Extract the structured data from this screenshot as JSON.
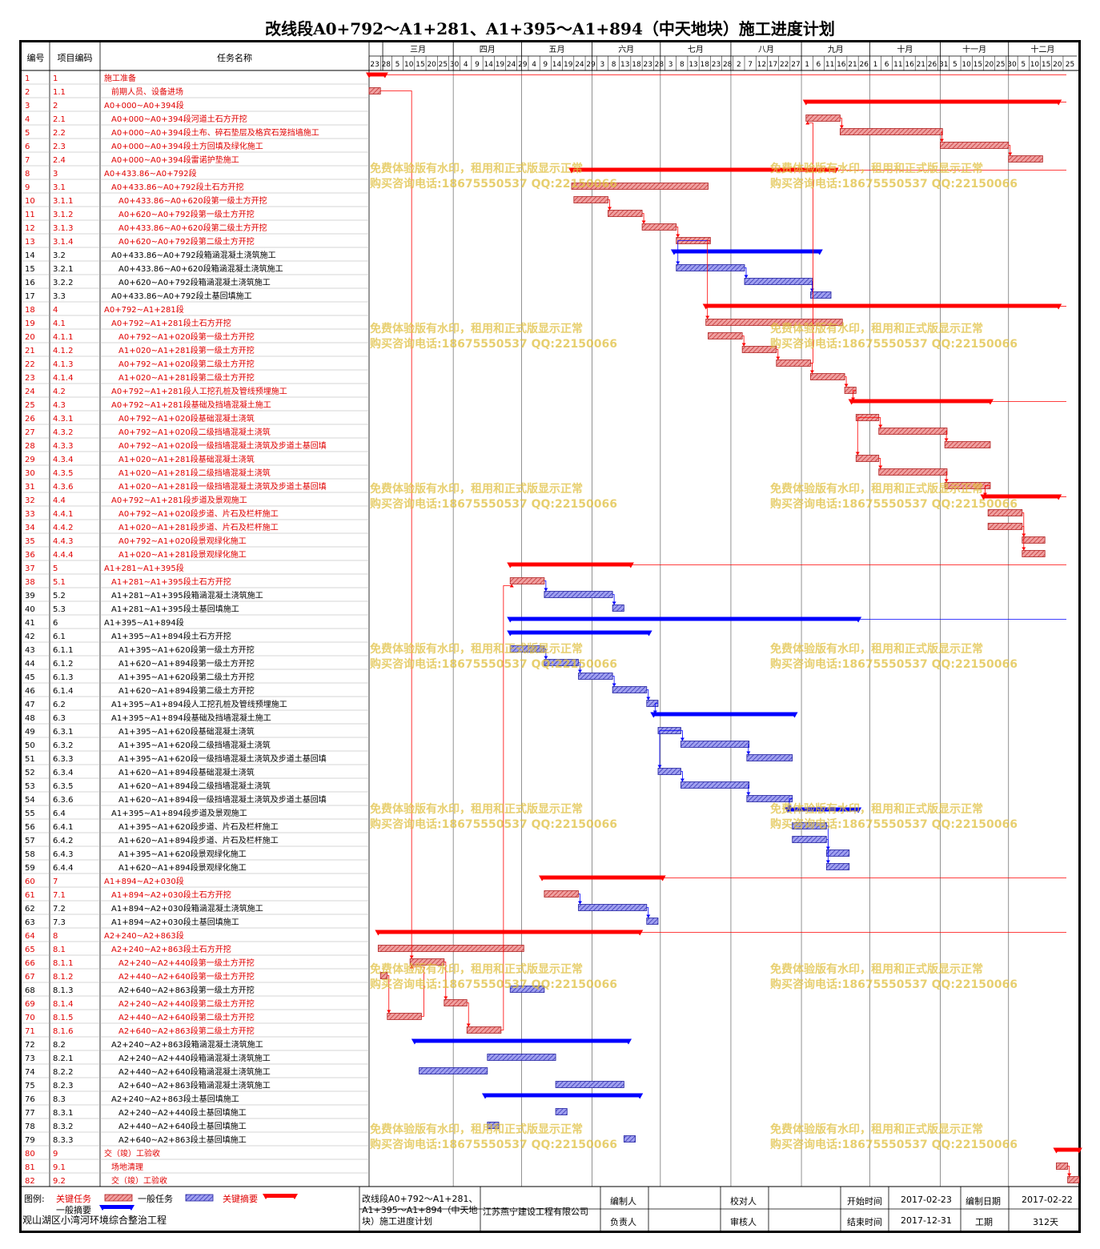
{
  "title": "改线段A0+792～A1+281、A1+395～A1+894（中天地块）施工进度计划",
  "chart_data": {
    "type": "gantt",
    "start_date": "2017-02-23",
    "end_date": "2017-12-31",
    "columns": {
      "id": "编号",
      "code": "项目编码",
      "name": "任务名称"
    },
    "months": [
      "三月",
      "四月",
      "五月",
      "六月",
      "七月",
      "八月",
      "九月",
      "十月",
      "十一月",
      "十二月"
    ],
    "days": [
      "23",
      "28",
      "5",
      "10",
      "15",
      "20",
      "25",
      "30",
      "4",
      "9",
      "14",
      "19",
      "24",
      "29",
      "4",
      "9",
      "14",
      "19",
      "24",
      "29",
      "3",
      "8",
      "13",
      "18",
      "23",
      "28",
      "3",
      "8",
      "13",
      "18",
      "23",
      "28",
      "2",
      "7",
      "12",
      "17",
      "22",
      "27",
      "1",
      "6",
      "11",
      "16",
      "21",
      "26",
      "1",
      "6",
      "11",
      "16",
      "21",
      "26",
      "31",
      "5",
      "10",
      "15",
      "20",
      "25",
      "30",
      "5",
      "10",
      "15",
      "20",
      "25"
    ],
    "colors": {
      "critical": "#ff0000",
      "normal": "#0000ff",
      "critical_bar": "#e06060",
      "normal_bar": "#6060d0"
    },
    "tasks": [
      {
        "id": "1",
        "code": "1",
        "name": "施工准备",
        "c": 1,
        "sum": 1,
        "s": "02-23",
        "e": "03-01",
        "dep": []
      },
      {
        "id": "2",
        "code": "1.1",
        "name": "前期人员、设备进场",
        "c": 1,
        "sum": 0,
        "s": "02-23",
        "e": "02-27",
        "dep": [
          66
        ]
      },
      {
        "id": "3",
        "code": "2",
        "name": "A0+000~A0+394段",
        "c": 1,
        "sum": 1,
        "s": "09-03",
        "e": "12-22",
        "dep": []
      },
      {
        "id": "4",
        "code": "2.1",
        "name": "A0+000~A0+394段河道土石方开挖",
        "c": 1,
        "sum": 0,
        "s": "09-03",
        "e": "09-17",
        "dep": [
          5
        ]
      },
      {
        "id": "5",
        "code": "2.2",
        "name": "A0+000~A0+394段土布、碎石垫层及格宾石笼挡墙施工",
        "c": 1,
        "sum": 0,
        "s": "09-18",
        "e": "11-01",
        "dep": [
          6
        ]
      },
      {
        "id": "6",
        "code": "2.3",
        "name": "A0+000~A0+394段土方回填及绿化施工",
        "c": 1,
        "sum": 0,
        "s": "11-01",
        "e": "11-30",
        "dep": [
          7
        ]
      },
      {
        "id": "7",
        "code": "2.4",
        "name": "A0+000~A0+394段雷诺护垫施工",
        "c": 1,
        "sum": 0,
        "s": "12-01",
        "e": "12-15",
        "dep": []
      },
      {
        "id": "8",
        "code": "3",
        "name": "A0+433.86~A0+792段",
        "c": 1,
        "sum": 1,
        "s": "05-23",
        "e": "09-15",
        "dep": []
      },
      {
        "id": "9",
        "code": "3.1",
        "name": "A0+433.86~A0+792段土石方开挖",
        "c": 1,
        "sum": 0,
        "s": "05-23",
        "e": "07-21",
        "dep": []
      },
      {
        "id": "10",
        "code": "3.1.1",
        "name": "A0+433.86~A0+620段第一级土方开挖",
        "c": 1,
        "sum": 0,
        "s": "05-24",
        "e": "06-07",
        "dep": [
          11
        ]
      },
      {
        "id": "11",
        "code": "3.1.2",
        "name": "A0+620~A0+792段第一级土方开挖",
        "c": 1,
        "sum": 0,
        "s": "06-08",
        "e": "06-22",
        "dep": [
          12
        ]
      },
      {
        "id": "12",
        "code": "3.1.3",
        "name": "A0+433.86~A0+620段第二级土方开挖",
        "c": 1,
        "sum": 0,
        "s": "06-23",
        "e": "07-07",
        "dep": [
          13
        ]
      },
      {
        "id": "13",
        "code": "3.1.4",
        "name": "A0+620~A0+792段第二级土方开挖",
        "c": 1,
        "sum": 0,
        "s": "07-08",
        "e": "07-22",
        "dep": [
          15,
          19
        ]
      },
      {
        "id": "14",
        "code": "3.2",
        "name": "A0+433.86~A0+792段箱涵混凝土浇筑施工",
        "c": 0,
        "sum": 1,
        "s": "07-07",
        "e": "09-08",
        "dep": []
      },
      {
        "id": "15",
        "code": "3.2.1",
        "name": "A0+433.86~A0+620段箱涵混凝土浇筑施工",
        "c": 0,
        "sum": 0,
        "s": "07-08",
        "e": "08-06",
        "dep": [
          16
        ]
      },
      {
        "id": "16",
        "code": "3.2.2",
        "name": "A0+620~A0+792段箱涵混凝土浇筑施工",
        "c": 0,
        "sum": 0,
        "s": "08-07",
        "e": "09-05",
        "dep": [
          17
        ]
      },
      {
        "id": "17",
        "code": "3.3",
        "name": "A0+433.86~A0+792段土基回填施工",
        "c": 0,
        "sum": 0,
        "s": "09-05",
        "e": "09-13",
        "dep": []
      },
      {
        "id": "18",
        "code": "4",
        "name": "A0+792~A1+281段",
        "c": 1,
        "sum": 1,
        "s": "07-21",
        "e": "12-22",
        "dep": []
      },
      {
        "id": "19",
        "code": "4.1",
        "name": "A0+792~A1+281段土石方开挖",
        "c": 1,
        "sum": 0,
        "s": "07-21",
        "e": "09-18",
        "dep": []
      },
      {
        "id": "20",
        "code": "4.1.1",
        "name": "A0+792~A1+020段第一级土方开挖",
        "c": 1,
        "sum": 0,
        "s": "07-22",
        "e": "08-05",
        "dep": [
          21
        ]
      },
      {
        "id": "21",
        "code": "4.1.2",
        "name": "A1+020~A1+281段第一级土方开挖",
        "c": 1,
        "sum": 0,
        "s": "08-06",
        "e": "08-20",
        "dep": [
          22
        ]
      },
      {
        "id": "22",
        "code": "4.1.3",
        "name": "A0+792~A1+020段第二级土方开挖",
        "c": 1,
        "sum": 0,
        "s": "08-21",
        "e": "09-04",
        "dep": [
          23,
          4
        ]
      },
      {
        "id": "23",
        "code": "4.1.4",
        "name": "A1+020~A1+281段第二级土方开挖",
        "c": 1,
        "sum": 0,
        "s": "09-05",
        "e": "09-19",
        "dep": [
          24
        ]
      },
      {
        "id": "24",
        "code": "4.2",
        "name": "A0+792~A1+281段人工挖孔桩及管线预埋施工",
        "c": 1,
        "sum": 0,
        "s": "09-20",
        "e": "09-24",
        "dep": [
          25
        ]
      },
      {
        "id": "25",
        "code": "4.3",
        "name": "A0+792~A1+281段基础及挡墙混凝土施工",
        "c": 1,
        "sum": 1,
        "s": "09-23",
        "e": "11-22",
        "dep": []
      },
      {
        "id": "26",
        "code": "4.3.1",
        "name": "A0+792~A1+020段基础混凝土浇筑",
        "c": 1,
        "sum": 0,
        "s": "09-25",
        "e": "10-04",
        "dep": [
          27,
          29
        ]
      },
      {
        "id": "27",
        "code": "4.3.2",
        "name": "A0+792~A1+020段二级挡墙混凝土浇筑",
        "c": 1,
        "sum": 0,
        "s": "10-05",
        "e": "11-03",
        "dep": [
          28
        ]
      },
      {
        "id": "28",
        "code": "4.3.3",
        "name": "A0+792~A1+020段一级挡墙混凝土浇筑及步道土基回填",
        "c": 1,
        "sum": 0,
        "s": "11-03",
        "e": "11-22",
        "dep": []
      },
      {
        "id": "29",
        "code": "4.3.4",
        "name": "A1+020~A1+281段基础混凝土浇筑",
        "c": 1,
        "sum": 0,
        "s": "09-25",
        "e": "10-04",
        "dep": [
          30
        ]
      },
      {
        "id": "30",
        "code": "4.3.5",
        "name": "A1+020~A1+281段二级挡墙混凝土浇筑",
        "c": 1,
        "sum": 0,
        "s": "10-05",
        "e": "11-03",
        "dep": [
          31
        ]
      },
      {
        "id": "31",
        "code": "4.3.6",
        "name": "A1+020~A1+281段一级挡墙混凝土浇筑及步道土基回填",
        "c": 1,
        "sum": 0,
        "s": "11-03",
        "e": "11-22",
        "dep": [
          32
        ]
      },
      {
        "id": "32",
        "code": "4.4",
        "name": "A0+792~A1+281段步道及景观施工",
        "c": 1,
        "sum": 1,
        "s": "11-20",
        "e": "12-22",
        "dep": []
      },
      {
        "id": "33",
        "code": "4.4.1",
        "name": "A0+792~A1+020段步道、片石及栏杆施工",
        "c": 1,
        "sum": 0,
        "s": "11-22",
        "e": "12-06",
        "dep": [
          35
        ]
      },
      {
        "id": "34",
        "code": "4.4.2",
        "name": "A1+020~A1+281段步道、片石及栏杆施工",
        "c": 1,
        "sum": 0,
        "s": "11-22",
        "e": "12-06",
        "dep": [
          36
        ]
      },
      {
        "id": "35",
        "code": "4.4.3",
        "name": "A0+792~A1+020段景观绿化施工",
        "c": 1,
        "sum": 0,
        "s": "12-07",
        "e": "12-16",
        "dep": []
      },
      {
        "id": "36",
        "code": "4.4.4",
        "name": "A1+020~A1+281段景观绿化施工",
        "c": 1,
        "sum": 0,
        "s": "12-07",
        "e": "12-16",
        "dep": []
      },
      {
        "id": "37",
        "code": "5",
        "name": "A1+281~A1+395段",
        "c": 1,
        "sum": 1,
        "s": "04-26",
        "e": "06-17",
        "dep": []
      },
      {
        "id": "38",
        "code": "5.1",
        "name": "A1+281~A1+395段土石方开挖",
        "c": 1,
        "sum": 0,
        "s": "04-26",
        "e": "05-10",
        "dep": [
          39
        ]
      },
      {
        "id": "39",
        "code": "5.2",
        "name": "A1+281~A1+395段箱涵混凝土浇筑施工",
        "c": 0,
        "sum": 0,
        "s": "05-11",
        "e": "06-09",
        "dep": [
          40
        ]
      },
      {
        "id": "40",
        "code": "5.3",
        "name": "A1+281~A1+395段土基回填施工",
        "c": 0,
        "sum": 0,
        "s": "06-10",
        "e": "06-14",
        "dep": []
      },
      {
        "id": "41",
        "code": "6",
        "name": "A1+395~A1+894段",
        "c": 0,
        "sum": 1,
        "s": "04-26",
        "e": "09-25",
        "dep": []
      },
      {
        "id": "42",
        "code": "6.1",
        "name": "A1+395~A1+894段土石方开挖",
        "c": 0,
        "sum": 1,
        "s": "04-26",
        "e": "06-25",
        "dep": []
      },
      {
        "id": "43",
        "code": "6.1.1",
        "name": "A1+395~A1+620段第一级土方开挖",
        "c": 0,
        "sum": 0,
        "s": "04-26",
        "e": "05-10",
        "dep": [
          44
        ]
      },
      {
        "id": "44",
        "code": "6.1.2",
        "name": "A1+620~A1+894段第一级土方开挖",
        "c": 0,
        "sum": 0,
        "s": "05-11",
        "e": "05-25",
        "dep": [
          45
        ]
      },
      {
        "id": "45",
        "code": "6.1.3",
        "name": "A1+395~A1+620段第二级土方开挖",
        "c": 0,
        "sum": 0,
        "s": "05-26",
        "e": "06-09",
        "dep": [
          46
        ]
      },
      {
        "id": "46",
        "code": "6.1.4",
        "name": "A1+620~A1+894段第二级土方开挖",
        "c": 0,
        "sum": 0,
        "s": "06-10",
        "e": "06-24",
        "dep": [
          47
        ]
      },
      {
        "id": "47",
        "code": "6.2",
        "name": "A1+395~A1+894段人工挖孔桩及管线预埋施工",
        "c": 0,
        "sum": 0,
        "s": "06-25",
        "e": "06-29",
        "dep": [
          48
        ]
      },
      {
        "id": "48",
        "code": "6.3",
        "name": "A1+395~A1+894段基础及挡墙混凝土施工",
        "c": 0,
        "sum": 1,
        "s": "06-28",
        "e": "08-28",
        "dep": []
      },
      {
        "id": "49",
        "code": "6.3.1",
        "name": "A1+395~A1+620段基础混凝土浇筑",
        "c": 0,
        "sum": 0,
        "s": "06-30",
        "e": "07-09",
        "dep": [
          50,
          52
        ]
      },
      {
        "id": "50",
        "code": "6.3.2",
        "name": "A1+395~A1+620段二级挡墙混凝土浇筑",
        "c": 0,
        "sum": 0,
        "s": "07-10",
        "e": "08-08",
        "dep": [
          51
        ]
      },
      {
        "id": "51",
        "code": "6.3.3",
        "name": "A1+395~A1+620段一级挡墙混凝土浇筑及步道土基回填",
        "c": 0,
        "sum": 0,
        "s": "08-08",
        "e": "08-27",
        "dep": []
      },
      {
        "id": "52",
        "code": "6.3.4",
        "name": "A1+620~A1+894段基础混凝土浇筑",
        "c": 0,
        "sum": 0,
        "s": "06-30",
        "e": "07-09",
        "dep": [
          53
        ]
      },
      {
        "id": "53",
        "code": "6.3.5",
        "name": "A1+620~A1+894段二级挡墙混凝土浇筑",
        "c": 0,
        "sum": 0,
        "s": "07-10",
        "e": "08-08",
        "dep": [
          54
        ]
      },
      {
        "id": "54",
        "code": "6.3.6",
        "name": "A1+620~A1+894段一级挡墙混凝土浇筑及步道土基回填",
        "c": 0,
        "sum": 0,
        "s": "08-08",
        "e": "08-27",
        "dep": [
          55
        ]
      },
      {
        "id": "55",
        "code": "6.4",
        "name": "A1+395~A1+894段步道及景观施工",
        "c": 0,
        "sum": 1,
        "s": "08-26",
        "e": "09-25",
        "dep": []
      },
      {
        "id": "56",
        "code": "6.4.1",
        "name": "A1+395~A1+620段步道、片石及栏杆施工",
        "c": 0,
        "sum": 0,
        "s": "08-28",
        "e": "09-11",
        "dep": [
          58
        ]
      },
      {
        "id": "57",
        "code": "6.4.2",
        "name": "A1+620~A1+894段步道、片石及栏杆施工",
        "c": 0,
        "sum": 0,
        "s": "08-28",
        "e": "09-11",
        "dep": [
          59
        ]
      },
      {
        "id": "58",
        "code": "6.4.3",
        "name": "A1+395~A1+620段景观绿化施工",
        "c": 0,
        "sum": 0,
        "s": "09-12",
        "e": "09-21",
        "dep": []
      },
      {
        "id": "59",
        "code": "6.4.4",
        "name": "A1+620~A1+894段景观绿化施工",
        "c": 0,
        "sum": 0,
        "s": "09-12",
        "e": "09-21",
        "dep": []
      },
      {
        "id": "60",
        "code": "7",
        "name": "A1+894~A2+030段",
        "c": 1,
        "sum": 1,
        "s": "05-10",
        "e": "07-01",
        "dep": []
      },
      {
        "id": "61",
        "code": "7.1",
        "name": "A1+894~A2+030段土石方开挖",
        "c": 1,
        "sum": 0,
        "s": "05-11",
        "e": "05-25",
        "dep": [
          62
        ]
      },
      {
        "id": "62",
        "code": "7.2",
        "name": "A1+894~A2+030段箱涵混凝土浇筑施工",
        "c": 0,
        "sum": 0,
        "s": "05-26",
        "e": "06-24",
        "dep": [
          63
        ]
      },
      {
        "id": "63",
        "code": "7.3",
        "name": "A1+894~A2+030段土基回填施工",
        "c": 0,
        "sum": 0,
        "s": "06-25",
        "e": "06-29",
        "dep": []
      },
      {
        "id": "64",
        "code": "8",
        "name": "A2+240~A2+863段",
        "c": 1,
        "sum": 1,
        "s": "02-27",
        "e": "06-21",
        "dep": []
      },
      {
        "id": "65",
        "code": "8.1",
        "name": "A2+240~A2+863段土石方开挖",
        "c": 1,
        "sum": 0,
        "s": "02-27",
        "e": "05-01",
        "dep": []
      },
      {
        "id": "66",
        "code": "8.1.1",
        "name": "A2+240~A2+440段第一级土方开挖",
        "c": 1,
        "sum": 0,
        "s": "03-13",
        "e": "03-27",
        "dep": [
          69
        ]
      },
      {
        "id": "67",
        "code": "8.1.2",
        "name": "A2+440~A2+640段第一级土方开挖",
        "c": 1,
        "sum": 0,
        "s": "02-28",
        "e": "03-02",
        "dep": [
          70
        ]
      },
      {
        "id": "68",
        "code": "8.1.3",
        "name": "A2+640~A2+863段第一级土方开挖",
        "c": 0,
        "sum": 0,
        "s": "04-26",
        "e": "05-10",
        "dep": []
      },
      {
        "id": "69",
        "code": "8.1.4",
        "name": "A2+240~A2+440段第二级土方开挖",
        "c": 1,
        "sum": 0,
        "s": "03-28",
        "e": "04-06",
        "dep": [
          71
        ]
      },
      {
        "id": "70",
        "code": "8.1.5",
        "name": "A2+440~A2+640段第二级土方开挖",
        "c": 1,
        "sum": 0,
        "s": "03-03",
        "e": "03-17",
        "dep": [
          66
        ]
      },
      {
        "id": "71",
        "code": "8.1.6",
        "name": "A2+640~A2+863段第二级土方开挖",
        "c": 1,
        "sum": 0,
        "s": "04-07",
        "e": "04-21",
        "dep": [
          38
        ]
      },
      {
        "id": "72",
        "code": "8.2",
        "name": "A2+240~A2+863段箱涵混凝土浇筑施工",
        "c": 0,
        "sum": 1,
        "s": "03-15",
        "e": "06-16",
        "dep": []
      },
      {
        "id": "73",
        "code": "8.2.1",
        "name": "A2+240~A2+440段箱涵混凝土浇筑施工",
        "c": 0,
        "sum": 0,
        "s": "04-16",
        "e": "05-15",
        "dep": []
      },
      {
        "id": "74",
        "code": "8.2.2",
        "name": "A2+440~A2+640段箱涵混凝土浇筑施工",
        "c": 0,
        "sum": 0,
        "s": "03-17",
        "e": "04-15",
        "dep": []
      },
      {
        "id": "75",
        "code": "8.2.3",
        "name": "A2+640~A2+863段箱涵混凝土浇筑施工",
        "c": 0,
        "sum": 0,
        "s": "05-16",
        "e": "06-14",
        "dep": []
      },
      {
        "id": "76",
        "code": "8.3",
        "name": "A2+240~A2+863段土基回填施工",
        "c": 0,
        "sum": 1,
        "s": "04-15",
        "e": "06-21",
        "dep": []
      },
      {
        "id": "77",
        "code": "8.3.1",
        "name": "A2+240~A2+440段土基回填施工",
        "c": 0,
        "sum": 0,
        "s": "05-16",
        "e": "05-20",
        "dep": []
      },
      {
        "id": "78",
        "code": "8.3.2",
        "name": "A2+440~A2+640段土基回填施工",
        "c": 0,
        "sum": 0,
        "s": "04-16",
        "e": "04-20",
        "dep": []
      },
      {
        "id": "79",
        "code": "8.3.3",
        "name": "A2+640~A2+863段土基回填施工",
        "c": 0,
        "sum": 0,
        "s": "06-15",
        "e": "06-19",
        "dep": []
      },
      {
        "id": "80",
        "code": "9",
        "name": "交（竣）工验收",
        "c": 1,
        "sum": 1,
        "s": "12-22",
        "e": "12-31",
        "dep": []
      },
      {
        "id": "81",
        "code": "9.1",
        "name": "场地清理",
        "c": 1,
        "sum": 0,
        "s": "12-22",
        "e": "12-26",
        "dep": [
          82
        ]
      },
      {
        "id": "82",
        "code": "9.2",
        "name": "交（竣）工验收",
        "c": 1,
        "sum": 0,
        "s": "12-27",
        "e": "12-31",
        "dep": []
      }
    ]
  },
  "watermark": {
    "line1": "免费体验版有水印，租用和正式版显示正常",
    "line2": "购买咨询电话:18675550537 QQ:22150066"
  },
  "legend": {
    "label": "图例:",
    "critical": "关键任务",
    "normal": "一般任务",
    "critical_summary": "关键摘要",
    "normal_summary": "一般摘要"
  },
  "footer": {
    "project_name": "观山湖区小湾河环境综合整治工程",
    "plan_name": "改线段A0+792～A1+281、A1+395～A1+894（中天地块）施工进度计划",
    "company": "江苏燕宁建设工程有限公司",
    "compiler_label": "编制人",
    "checker_label": "校对人",
    "leader_label": "负责人",
    "auditor_label": "审核人",
    "start_label": "开始时间",
    "start_value": "2017-02-23",
    "end_label": "结束时间",
    "end_value": "2017-12-31",
    "date_label": "编制日期",
    "date_value": "2017-02-22",
    "duration_label": "工期",
    "duration_value": "312天"
  }
}
